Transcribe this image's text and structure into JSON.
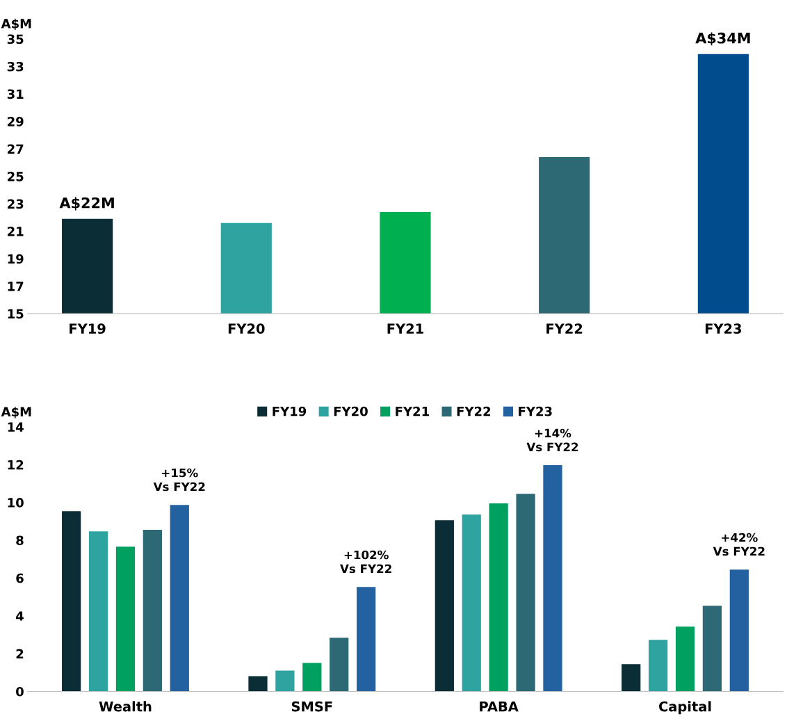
{
  "chart_data": [
    {
      "type": "bar",
      "ylabel": "A$M",
      "categories": [
        "FY19",
        "FY20",
        "FY21",
        "FY22",
        "FY23"
      ],
      "values": [
        21.9,
        21.6,
        22.4,
        26.4,
        33.9
      ],
      "colors": [
        "#0b2d35",
        "#2ea3a0",
        "#00b050",
        "#2d6875",
        "#004c8c"
      ],
      "value_labels": [
        "A$22M",
        null,
        null,
        null,
        "A$34M"
      ],
      "ylim": [
        15,
        35
      ],
      "yticks": [
        15,
        17,
        19,
        21,
        23,
        25,
        27,
        29,
        31,
        33,
        35
      ],
      "grid": false
    },
    {
      "type": "bar",
      "ylabel": "A$M",
      "categories": [
        "Wealth",
        "SMSF",
        "PABA",
        "Capital"
      ],
      "series": [
        {
          "name": "FY19",
          "color": "#0b2d35",
          "values": [
            9.54,
            0.81,
            9.06,
            1.44
          ]
        },
        {
          "name": "FY20",
          "color": "#2ea3a0",
          "values": [
            8.47,
            1.1,
            9.36,
            2.73
          ]
        },
        {
          "name": "FY21",
          "color": "#00a060",
          "values": [
            7.66,
            1.51,
            9.95,
            3.43
          ]
        },
        {
          "name": "FY22",
          "color": "#2d6875",
          "values": [
            8.55,
            2.84,
            10.46,
            4.53
          ]
        },
        {
          "name": "FY23",
          "color": "#2361a0",
          "values": [
            9.87,
            5.53,
            11.97,
            6.45
          ]
        }
      ],
      "annotations": [
        "+15%\nVs FY22",
        "+102%\nVs FY22",
        "+14%\nVs FY22",
        "+42%\nVs FY22"
      ],
      "ylim": [
        0,
        14
      ],
      "yticks": [
        0,
        2,
        4,
        6,
        8,
        10,
        12,
        14
      ],
      "grid": false,
      "legend": "top"
    }
  ]
}
